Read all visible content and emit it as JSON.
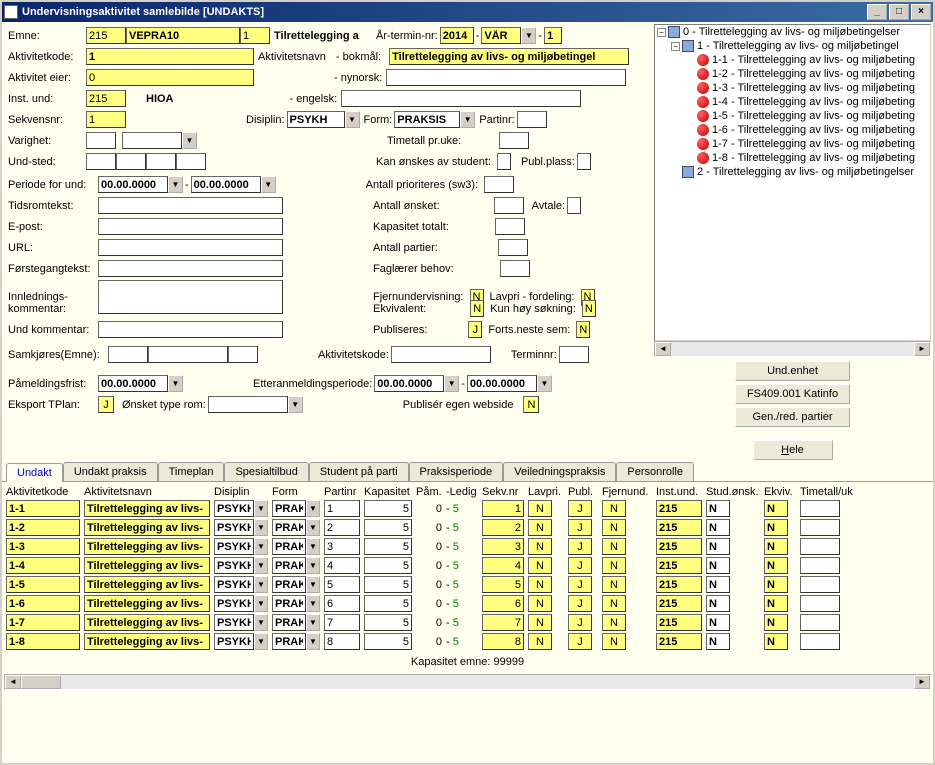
{
  "window": {
    "title": "Undervisningsaktivitet samlebilde   [UNDAKTS]"
  },
  "form": {
    "emne_label": "Emne:",
    "emne_code": "215",
    "emne_id": "VEPRA10",
    "emne_ver": "1",
    "tilrettelegging_label": "Tilrettelegging a",
    "ar_termin_label": "År-termin-nr:",
    "year": "2014",
    "term": "VÅR",
    "term_nr": "1",
    "aktivitetkode_label": "Aktivitetkode:",
    "aktivitetkode": "1",
    "aktivitetsnavn_label": "Aktivitetsnavn",
    "bokmal_label": "- bokmål:",
    "bokmal_value": "Tilrettelegging av livs- og miljøbetingel",
    "aktivitet_eier_label": "Aktivitet eier:",
    "aktivitet_eier": "0",
    "nynorsk_label": "- nynorsk:",
    "inst_und_label": "Inst. und:",
    "inst_und": "215",
    "inst_name": "HIOA",
    "engelsk_label": "- engelsk:",
    "sekvensnr_label": "Sekvensnr:",
    "sekvensnr": "1",
    "disiplin_label": "Disiplin:",
    "disiplin": "PSYKH",
    "form_label": "Form:",
    "form": "PRAKSIS",
    "partinr_label": "Partinr:",
    "varighet_label": "Varighet:",
    "timetall_label": "Timetall pr.uke:",
    "und_sted_label": "Und-sted:",
    "kan_onskes_label": "Kan ønskes av student:",
    "publ_plass_label": "Publ.plass:",
    "periode_label": "Periode for und:",
    "periode_fra": "00.00.0000",
    "periode_til": "00.00.0000",
    "antall_prio_label": "Antall prioriteres (sw3):",
    "tidsromtekst_label": "Tidsromtekst:",
    "antall_onsket_label": "Antall ønsket:",
    "avtale_label": "Avtale:",
    "epost_label": "E-post:",
    "kapasitet_totalt_label": "Kapasitet totalt:",
    "url_label": "URL:",
    "antall_partier_label": "Antall partier:",
    "forstegangtekst_label": "Førstegangtekst:",
    "faglaerer_label": "Faglærer behov:",
    "innlednings_label": "Innlednings-",
    "fjernundervisning_label": "Fjernundervisning:",
    "fjernundervisning": "N",
    "lavpri_label": "Lavpri - fordeling:",
    "lavpri": "N",
    "kommentar_label": "kommentar:",
    "ekvivalent_label": "Ekvivalent:",
    "ekvivalent": "N",
    "kun_hoy_label": "Kun høy søkning:",
    "kun_hoy": "N",
    "und_kommentar_label": "Und kommentar:",
    "publiseres_label": "Publiseres:",
    "publiseres": "J",
    "forts_neste_label": "Forts.neste sem:",
    "forts_neste": "N",
    "samkjores_label": "Samkjøres(Emne):",
    "aktivitetskode2_label": "Aktivitetskode:",
    "terminnr_label": "Terminnr:",
    "pameldingsfrist_label": "Påmeldingsfrist:",
    "pameldingsfrist": "00.00.0000",
    "etteranmelding_label": "Etteranmeldingsperiode:",
    "etter_fra": "00.00.0000",
    "etter_til": "00.00.0000",
    "eksport_tplan_label": "Eksport TPlan:",
    "eksport_tplan": "J",
    "onsket_type_label": "Ønsket type rom:",
    "publiser_webside_label": "Publisér egen webside",
    "publiser_webside": "N"
  },
  "buttons": {
    "und_enhet": "Und.enhet",
    "katinfo": "FS409.001 Katinfo",
    "gen_red": "Gen./red. partier",
    "hele": "Hele"
  },
  "tree": {
    "root": "0 - Tilrettelegging av livs- og miljøbetingelser",
    "node1": "1 - Tilrettelegging av livs- og miljøbetingel",
    "leaves": [
      "1-1 - Tilrettelegging av livs- og miljøbeting",
      "1-2 - Tilrettelegging av livs- og miljøbeting",
      "1-3 - Tilrettelegging av livs- og miljøbeting",
      "1-4 - Tilrettelegging av livs- og miljøbeting",
      "1-5 - Tilrettelegging av livs- og miljøbeting",
      "1-6 - Tilrettelegging av livs- og miljøbeting",
      "1-7 - Tilrettelegging av livs- og miljøbeting",
      "1-8 - Tilrettelegging av livs- og miljøbeting"
    ],
    "node2": "2 - Tilrettelegging av livs- og miljøbetingelser"
  },
  "tabs": [
    "Undakt",
    "Undakt praksis",
    "Timeplan",
    "Spesialtilbud",
    "Student på parti",
    "Praksisperiode",
    "Veiledningspraksis",
    "Personrolle"
  ],
  "grid": {
    "headers": {
      "aktivitetkode": "Aktivitetkode",
      "aktivitetsnavn": "Aktivitetsnavn",
      "disiplin": "Disiplin",
      "form": "Form",
      "partinr": "Partinr",
      "kapasitet": "Kapasitet",
      "pam": "Påm.",
      "ledig": "-Ledig",
      "sekvnr": "Sekv.nr",
      "lavpri": "Lavpri.",
      "publ": "Publ.",
      "fjernund": "Fjernund.",
      "instund": "Inst.und.",
      "studonsk": "Stud.ønsk.",
      "ekviv": "Ekviv.",
      "timetall": "Timetall/uk"
    },
    "rows": [
      {
        "kode": "1-1",
        "navn": "Tilrettelegging av livs-",
        "disiplin": "PSYKH",
        "form": "PRAK",
        "partinr": "1",
        "kap": "5",
        "pam": "0",
        "ledig": "5",
        "sekv": "1",
        "lavpri": "N",
        "publ": "J",
        "fjern": "N",
        "inst": "215",
        "stud": "N",
        "ekviv": "N"
      },
      {
        "kode": "1-2",
        "navn": "Tilrettelegging av livs-",
        "disiplin": "PSYKH",
        "form": "PRAK",
        "partinr": "2",
        "kap": "5",
        "pam": "0",
        "ledig": "5",
        "sekv": "2",
        "lavpri": "N",
        "publ": "J",
        "fjern": "N",
        "inst": "215",
        "stud": "N",
        "ekviv": "N"
      },
      {
        "kode": "1-3",
        "navn": "Tilrettelegging av livs-",
        "disiplin": "PSYKH",
        "form": "PRAK",
        "partinr": "3",
        "kap": "5",
        "pam": "0",
        "ledig": "5",
        "sekv": "3",
        "lavpri": "N",
        "publ": "J",
        "fjern": "N",
        "inst": "215",
        "stud": "N",
        "ekviv": "N"
      },
      {
        "kode": "1-4",
        "navn": "Tilrettelegging av livs-",
        "disiplin": "PSYKH",
        "form": "PRAK",
        "partinr": "4",
        "kap": "5",
        "pam": "0",
        "ledig": "5",
        "sekv": "4",
        "lavpri": "N",
        "publ": "J",
        "fjern": "N",
        "inst": "215",
        "stud": "N",
        "ekviv": "N"
      },
      {
        "kode": "1-5",
        "navn": "Tilrettelegging av livs-",
        "disiplin": "PSYKH",
        "form": "PRAK",
        "partinr": "5",
        "kap": "5",
        "pam": "0",
        "ledig": "5",
        "sekv": "5",
        "lavpri": "N",
        "publ": "J",
        "fjern": "N",
        "inst": "215",
        "stud": "N",
        "ekviv": "N"
      },
      {
        "kode": "1-6",
        "navn": "Tilrettelegging av livs-",
        "disiplin": "PSYKH",
        "form": "PRAK",
        "partinr": "6",
        "kap": "5",
        "pam": "0",
        "ledig": "5",
        "sekv": "6",
        "lavpri": "N",
        "publ": "J",
        "fjern": "N",
        "inst": "215",
        "stud": "N",
        "ekviv": "N"
      },
      {
        "kode": "1-7",
        "navn": "Tilrettelegging av livs-",
        "disiplin": "PSYKH",
        "form": "PRAK",
        "partinr": "7",
        "kap": "5",
        "pam": "0",
        "ledig": "5",
        "sekv": "7",
        "lavpri": "N",
        "publ": "J",
        "fjern": "N",
        "inst": "215",
        "stud": "N",
        "ekviv": "N"
      },
      {
        "kode": "1-8",
        "navn": "Tilrettelegging av livs-",
        "disiplin": "PSYKH",
        "form": "PRAK",
        "partinr": "8",
        "kap": "5",
        "pam": "0",
        "ledig": "5",
        "sekv": "8",
        "lavpri": "N",
        "publ": "J",
        "fjern": "N",
        "inst": "215",
        "stud": "N",
        "ekviv": "N"
      }
    ]
  },
  "footer": {
    "kapasitet_emne": "Kapasitet emne: 99999"
  }
}
